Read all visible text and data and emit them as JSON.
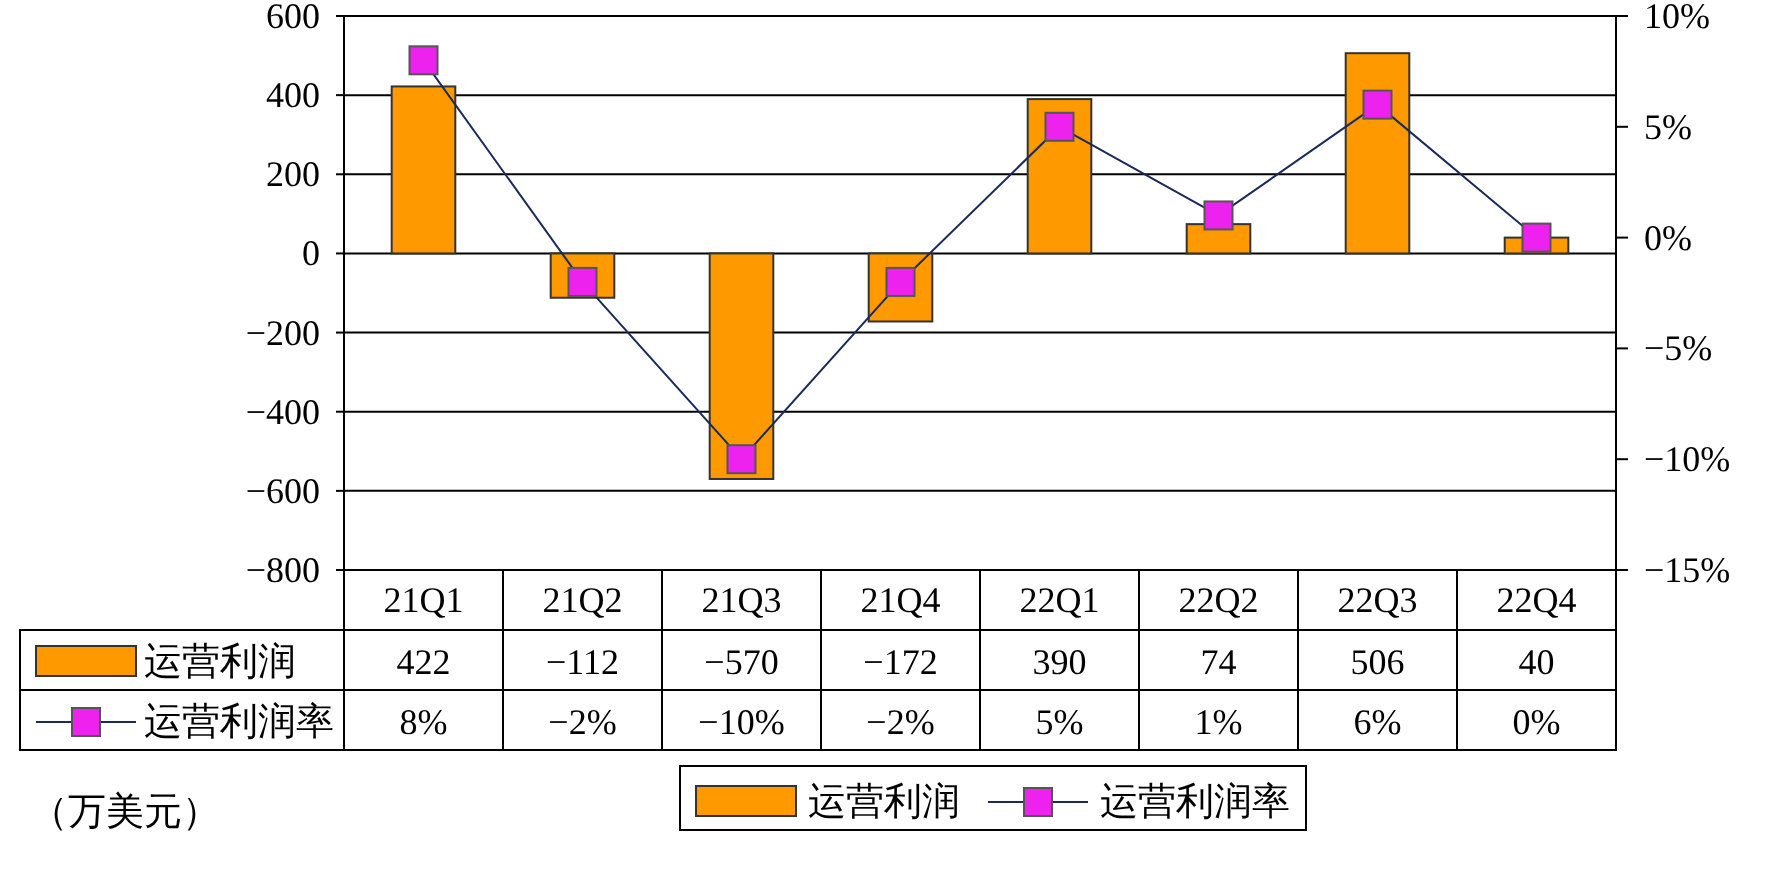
{
  "chart_data": {
    "type": "bar",
    "categories": [
      "21Q1",
      "21Q2",
      "21Q3",
      "21Q4",
      "22Q1",
      "22Q2",
      "22Q3",
      "22Q4"
    ],
    "series": [
      {
        "name": "运营利润",
        "color": "#ff9900",
        "values": [
          422,
          -112,
          -570,
          -172,
          390,
          74,
          506,
          40
        ],
        "value_labels": [
          "422",
          "−112",
          "−570",
          "−172",
          "390",
          "74",
          "506",
          "40"
        ]
      },
      {
        "name": "运营利润率",
        "type": "line",
        "axis": "y2",
        "color": "#ee22ee",
        "marker": "square",
        "values": [
          8,
          -2,
          -10,
          -2,
          5,
          1,
          6,
          0
        ],
        "value_labels": [
          "8%",
          "−2%",
          "−10%",
          "−2%",
          "5%",
          "1%",
          "6%",
          "0%"
        ]
      }
    ],
    "ylim": [
      -800,
      600
    ],
    "yticks": [
      {
        "value": -800,
        "label": "−800"
      },
      {
        "value": -600,
        "label": "−600"
      },
      {
        "value": -400,
        "label": "−400"
      },
      {
        "value": -200,
        "label": "−200"
      },
      0,
      200,
      400,
      600
    ],
    "y2lim": [
      -15,
      10
    ],
    "y2ticks": [
      {
        "value": -15,
        "label": "−15%"
      },
      {
        "value": -10,
        "label": "−10%"
      },
      {
        "value": -5,
        "label": "−5%"
      },
      {
        "value": 0,
        "label": "0%"
      },
      {
        "value": 5,
        "label": "5%"
      },
      {
        "value": 10,
        "label": "10%"
      }
    ],
    "grid": "y",
    "legend": "bottom",
    "annotations": [
      "（万美元）"
    ]
  }
}
